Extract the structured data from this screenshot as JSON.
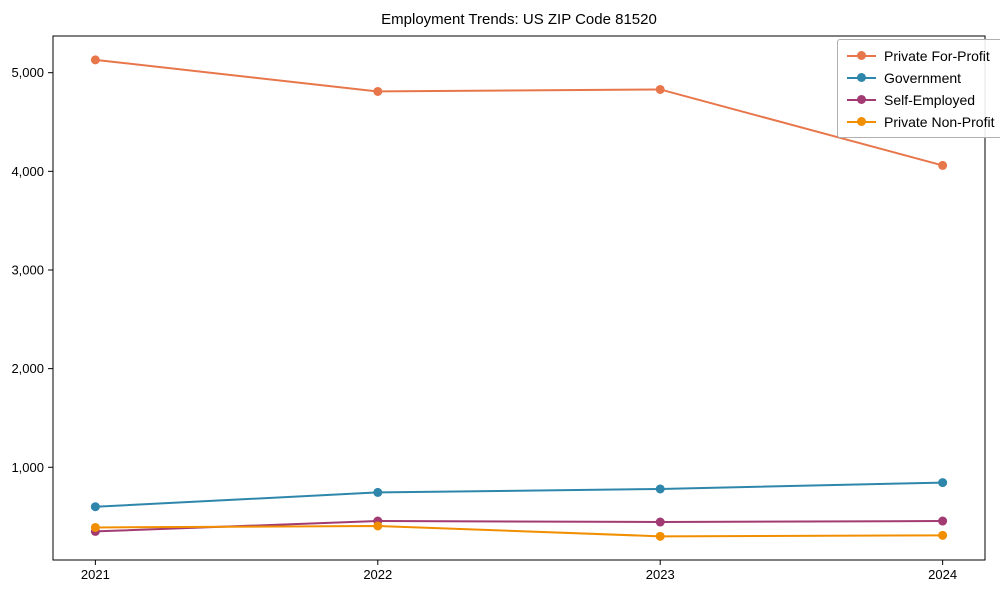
{
  "title": "Employment Trends: US ZIP Code 81520",
  "chart_data": {
    "type": "line",
    "title": "Employment Trends: US ZIP Code 81520",
    "x": [
      2021,
      2022,
      2023,
      2024
    ],
    "x_tick_labels": [
      "2021",
      "2022",
      "2023",
      "2024"
    ],
    "y_ticks": [
      1000,
      2000,
      3000,
      4000,
      5000
    ],
    "y_tick_labels": [
      "1,000",
      "2,000",
      "3,000",
      "4,000",
      "5,000"
    ],
    "xlim": [
      2020.85,
      2024.15
    ],
    "ylim": [
      60,
      5372
    ],
    "grid": false,
    "legend_position": "upper right",
    "marker": "circle",
    "series": [
      {
        "name": "Private For-Profit",
        "color": "#E8764B",
        "values": [
          5130,
          4810,
          4830,
          4060
        ]
      },
      {
        "name": "Government",
        "color": "#2E86AB",
        "values": [
          600,
          745,
          780,
          845
        ]
      },
      {
        "name": "Self-Employed",
        "color": "#A23B72",
        "values": [
          350,
          455,
          445,
          455
        ]
      },
      {
        "name": "Private Non-Profit",
        "color": "#F18F01",
        "values": [
          390,
          405,
          300,
          310
        ]
      }
    ]
  }
}
